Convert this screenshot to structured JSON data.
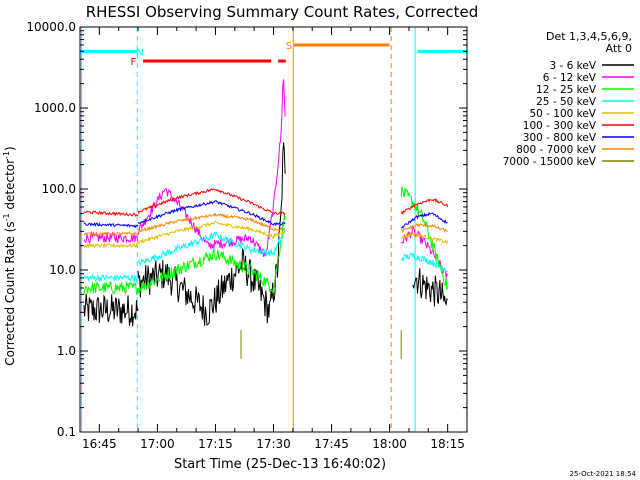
{
  "chart_data": {
    "type": "line",
    "title": "RHESSI Observing Summary Count Rates, Corrected",
    "xlabel": "Start Time (25-Dec-13 16:40:02)",
    "ylabel_pre": "Corrected Count Rate (s",
    "ylabel_sup1": "-1",
    "ylabel_mid": " detector",
    "ylabel_sup2": "-1",
    "ylabel_post": ")",
    "footer_date": "25-Oct-2021 18:54",
    "ylog": true,
    "ylim": [
      0.1,
      10000
    ],
    "xlim_minutes": [
      0,
      100
    ],
    "x_ticks": [
      {
        "m": 5,
        "label": "16:45"
      },
      {
        "m": 20,
        "label": "17:00"
      },
      {
        "m": 35,
        "label": "17:15"
      },
      {
        "m": 50,
        "label": "17:30"
      },
      {
        "m": 65,
        "label": "17:45"
      },
      {
        "m": 80,
        "label": "18:00"
      },
      {
        "m": 95,
        "label": "18:15"
      }
    ],
    "y_ticks": [
      {
        "v": 0.1,
        "label": "0.1"
      },
      {
        "v": 1,
        "label": "1.0"
      },
      {
        "v": 10,
        "label": "10.0"
      },
      {
        "v": 100,
        "label": "100.0"
      },
      {
        "v": 1000,
        "label": "1000.0"
      },
      {
        "v": 10000,
        "label": "10000.0"
      }
    ],
    "legend_head": [
      "Det 1,3,4,5,6,9,",
      "Att 0"
    ],
    "series": [
      {
        "name": "3 - 6 keV",
        "color": "#000000",
        "seg1": [
          [
            1,
            3.2
          ],
          [
            15,
            3.2
          ]
        ],
        "seg2": [
          [
            15,
            7
          ],
          [
            22,
            9
          ],
          [
            26,
            6
          ],
          [
            33,
            3
          ],
          [
            38,
            7
          ],
          [
            42,
            12
          ],
          [
            46,
            6
          ],
          [
            49,
            3
          ],
          [
            51,
            10
          ],
          [
            52,
            50
          ],
          [
            52.5,
            300
          ],
          [
            53,
            200
          ]
        ],
        "seg3": [
          [
            86,
            9
          ],
          [
            88,
            7
          ],
          [
            90,
            6
          ],
          [
            93,
            5
          ],
          [
            95,
            3.5
          ]
        ],
        "noise": 1.6
      },
      {
        "name": "6 - 12 keV",
        "color": "#ff00ff",
        "seg1": [
          [
            1,
            25
          ],
          [
            15,
            25
          ]
        ],
        "seg2": [
          [
            15,
            30
          ],
          [
            22,
            100
          ],
          [
            26,
            60
          ],
          [
            33,
            20
          ],
          [
            38,
            22
          ],
          [
            44,
            25
          ],
          [
            48,
            15
          ],
          [
            50,
            60
          ],
          [
            52,
            500
          ],
          [
            52.5,
            2800
          ],
          [
            53,
            800
          ]
        ],
        "seg3": [
          [
            83,
            22
          ],
          [
            86,
            30
          ],
          [
            89,
            22
          ],
          [
            92,
            14
          ],
          [
            95,
            8
          ]
        ],
        "noise": 1.15
      },
      {
        "name": "12 - 25 keV",
        "color": "#00ff00",
        "seg1": [
          [
            1,
            6
          ],
          [
            15,
            6
          ]
        ],
        "seg2": [
          [
            15,
            6
          ],
          [
            25,
            10
          ],
          [
            35,
            16
          ],
          [
            44,
            10
          ],
          [
            50,
            6
          ],
          [
            52,
            25
          ],
          [
            53,
            50
          ]
        ],
        "seg3": [
          [
            83,
            95
          ],
          [
            86,
            70
          ],
          [
            89,
            40
          ],
          [
            92,
            15
          ],
          [
            95,
            6
          ]
        ],
        "noise": 1.2
      },
      {
        "name": "25 - 50 keV",
        "color": "#00ffff",
        "seg1": [
          [
            1,
            8
          ],
          [
            15,
            8
          ]
        ],
        "seg2": [
          [
            15,
            12
          ],
          [
            25,
            18
          ],
          [
            35,
            27
          ],
          [
            44,
            18
          ],
          [
            50,
            16
          ],
          [
            53,
            30
          ]
        ],
        "seg3": [
          [
            83,
            14
          ],
          [
            86,
            15
          ],
          [
            90,
            13
          ],
          [
            95,
            10
          ]
        ],
        "noise": 1.1
      },
      {
        "name": "50 - 100 keV",
        "color": "#e0c000",
        "seg1": [
          [
            1,
            20
          ],
          [
            15,
            20
          ]
        ],
        "seg2": [
          [
            15,
            22
          ],
          [
            25,
            30
          ],
          [
            35,
            38
          ],
          [
            44,
            32
          ],
          [
            50,
            26
          ],
          [
            53,
            30
          ]
        ],
        "seg3": [
          [
            83,
            25
          ],
          [
            86,
            28
          ],
          [
            90,
            25
          ],
          [
            95,
            22
          ]
        ],
        "noise": 1.05
      },
      {
        "name": "100 - 300 keV",
        "color": "#ff0000",
        "seg1": [
          [
            1,
            52
          ],
          [
            15,
            48
          ]
        ],
        "seg2": [
          [
            15,
            52
          ],
          [
            25,
            78
          ],
          [
            35,
            100
          ],
          [
            44,
            68
          ],
          [
            50,
            50
          ],
          [
            53,
            50
          ]
        ],
        "seg3": [
          [
            83,
            50
          ],
          [
            87,
            65
          ],
          [
            91,
            75
          ],
          [
            95,
            62
          ]
        ],
        "noise": 1.04
      },
      {
        "name": "300 - 800 keV",
        "color": "#0000ff",
        "seg1": [
          [
            1,
            37
          ],
          [
            15,
            35
          ]
        ],
        "seg2": [
          [
            15,
            38
          ],
          [
            25,
            55
          ],
          [
            35,
            70
          ],
          [
            44,
            50
          ],
          [
            50,
            37
          ],
          [
            53,
            37
          ]
        ],
        "seg3": [
          [
            83,
            33
          ],
          [
            87,
            45
          ],
          [
            91,
            50
          ],
          [
            95,
            38
          ]
        ],
        "noise": 1.04
      },
      {
        "name": "800 - 7000 keV",
        "color": "#ff8000",
        "seg1": [
          [
            1,
            28
          ],
          [
            15,
            28
          ]
        ],
        "seg2": [
          [
            15,
            30
          ],
          [
            25,
            40
          ],
          [
            35,
            48
          ],
          [
            44,
            42
          ],
          [
            50,
            32
          ],
          [
            53,
            32
          ]
        ],
        "seg3": [
          [
            83,
            30
          ],
          [
            87,
            36
          ],
          [
            91,
            35
          ],
          [
            95,
            30
          ]
        ],
        "noise": 1.04
      },
      {
        "name": "7000 - 15000 keV",
        "color": "#808000",
        "seg1": [],
        "seg2": [],
        "seg3": [],
        "noise": 1.0
      }
    ],
    "bars": [
      {
        "label": "N",
        "color": "#00ffff",
        "ranges": [
          [
            0,
            14.7
          ],
          [
            87.2,
            100
          ]
        ],
        "y": 5000,
        "label_m": 15.5
      },
      {
        "label": "F",
        "color": "#ff0000",
        "ranges": [
          [
            16.3,
            49.4
          ],
          [
            51.2,
            53.2
          ]
        ],
        "y": 3800,
        "label_m": 13.8
      },
      {
        "label": "S",
        "color": "#ff8000",
        "ranges": [
          [
            55.3,
            80
          ]
        ],
        "y": 6000,
        "label_m": 54.0
      }
    ],
    "vlines": [
      {
        "m": 0.4,
        "color": "#00ffff",
        "dash": false
      },
      {
        "m": 14.8,
        "color": "#00ffff",
        "dash": true
      },
      {
        "m": 55.1,
        "color": "#ff8000",
        "dash": false
      },
      {
        "m": 80.4,
        "color": "#ff8000",
        "dash": true
      },
      {
        "m": 86.6,
        "color": "#00ffff",
        "dash": false
      },
      {
        "m": 100,
        "color": "#00ffff",
        "dash": true
      }
    ],
    "spikes": [
      {
        "m": 41.6,
        "v": 1.8
      },
      {
        "m": 83.0,
        "v": 1.8
      }
    ]
  }
}
